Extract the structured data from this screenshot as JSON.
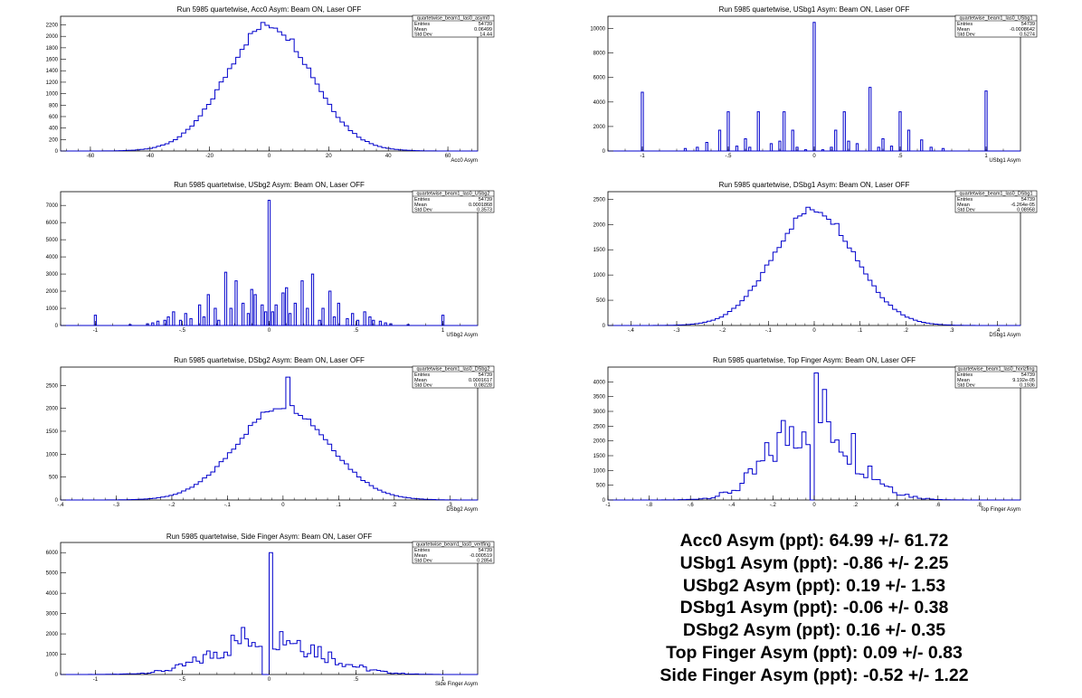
{
  "chart_data": [
    {
      "type": "histogram",
      "title": "Run 5985 quartetwise, Acc0 Asym: Beam ON, Laser OFF",
      "xlabel": "Acc0 Asym",
      "xlim": [
        -70,
        70
      ],
      "ylim": [
        0,
        2350
      ],
      "xticks": [
        -60,
        -40,
        -20,
        0,
        20,
        40,
        60
      ],
      "yticks": [
        0,
        200,
        400,
        600,
        800,
        1000,
        1200,
        1400,
        1600,
        1800,
        2000,
        2200
      ],
      "stats": {
        "name": "quartetwise_beam1_las0_asym0",
        "Entries": "54739",
        "Mean": "0.06499",
        "Std Dev": "14.44"
      },
      "shape": {
        "kind": "gauss",
        "mean": 0,
        "sigma": 14.4,
        "peak": 2200,
        "bins": 100,
        "lo": -70,
        "hi": 70
      }
    },
    {
      "type": "histogram",
      "title": "Run 5985 quartetwise, USbg1 Asym: Beam ON, Laser OFF",
      "xlabel": "USbg1 Asym",
      "xlim": [
        -1.2,
        1.2
      ],
      "ylim": [
        0,
        11000
      ],
      "xticks": [
        -1,
        -0.5,
        0,
        0.5,
        1
      ],
      "yticks": [
        0,
        2000,
        4000,
        6000,
        8000,
        10000
      ],
      "stats": {
        "name": "quartetwise_beam1_las0_USbg1",
        "Entries": "54739",
        "Mean": "-0.0008642",
        "Std Dev": "0.5274"
      },
      "spikes": [
        [
          -1.0,
          4800
        ],
        [
          -0.75,
          200
        ],
        [
          -0.68,
          300
        ],
        [
          -0.625,
          700
        ],
        [
          -0.55,
          1700
        ],
        [
          -0.5,
          3200
        ],
        [
          -0.45,
          400
        ],
        [
          -0.4,
          1000
        ],
        [
          -0.375,
          300
        ],
        [
          -0.325,
          3200
        ],
        [
          -0.25,
          600
        ],
        [
          -0.2,
          800
        ],
        [
          -0.175,
          3200
        ],
        [
          -0.125,
          1700
        ],
        [
          -0.1,
          300
        ],
        [
          -0.05,
          100
        ],
        [
          0.0,
          10500
        ],
        [
          0.05,
          100
        ],
        [
          0.1,
          300
        ],
        [
          0.125,
          1700
        ],
        [
          0.175,
          3200
        ],
        [
          0.2,
          800
        ],
        [
          0.25,
          600
        ],
        [
          0.325,
          5200
        ],
        [
          0.375,
          300
        ],
        [
          0.4,
          1000
        ],
        [
          0.45,
          400
        ],
        [
          0.5,
          3200
        ],
        [
          0.55,
          1700
        ],
        [
          0.625,
          900
        ],
        [
          0.68,
          300
        ],
        [
          0.75,
          200
        ],
        [
          1.0,
          4900
        ]
      ]
    },
    {
      "type": "histogram",
      "title": "Run 5985 quartetwise, USbg2 Asym: Beam ON, Laser OFF",
      "xlabel": "USbg2 Asym",
      "xlim": [
        -1.2,
        1.2
      ],
      "ylim": [
        0,
        7800
      ],
      "xticks": [
        -1,
        -0.5,
        0,
        0.5,
        1
      ],
      "yticks": [
        0,
        1000,
        2000,
        3000,
        4000,
        5000,
        6000,
        7000
      ],
      "stats": {
        "name": "quartetwise_beam1_las0_USbg2",
        "Entries": "54739",
        "Mean": "0.0001868",
        "Std Dev": "0.3573"
      },
      "spikes": [
        [
          -1.0,
          600
        ],
        [
          -0.8,
          50
        ],
        [
          -0.7,
          100
        ],
        [
          -0.67,
          150
        ],
        [
          -0.64,
          250
        ],
        [
          -0.6,
          300
        ],
        [
          -0.58,
          500
        ],
        [
          -0.55,
          800
        ],
        [
          -0.51,
          300
        ],
        [
          -0.48,
          700
        ],
        [
          -0.45,
          400
        ],
        [
          -0.4,
          1200
        ],
        [
          -0.375,
          500
        ],
        [
          -0.35,
          1800
        ],
        [
          -0.31,
          1000
        ],
        [
          -0.29,
          300
        ],
        [
          -0.25,
          3100
        ],
        [
          -0.22,
          1000
        ],
        [
          -0.19,
          2600
        ],
        [
          -0.15,
          1300
        ],
        [
          -0.12,
          700
        ],
        [
          -0.1,
          2100
        ],
        [
          -0.08,
          1800
        ],
        [
          -0.04,
          1200
        ],
        [
          -0.02,
          800
        ],
        [
          0.0,
          7300
        ],
        [
          0.02,
          800
        ],
        [
          0.04,
          1200
        ],
        [
          0.08,
          1900
        ],
        [
          0.1,
          2200
        ],
        [
          0.12,
          700
        ],
        [
          0.15,
          1300
        ],
        [
          0.19,
          2600
        ],
        [
          0.22,
          1000
        ],
        [
          0.25,
          3000
        ],
        [
          0.29,
          300
        ],
        [
          0.31,
          1000
        ],
        [
          0.35,
          2000
        ],
        [
          0.375,
          500
        ],
        [
          0.4,
          1300
        ],
        [
          0.45,
          400
        ],
        [
          0.48,
          700
        ],
        [
          0.51,
          300
        ],
        [
          0.55,
          800
        ],
        [
          0.58,
          500
        ],
        [
          0.6,
          300
        ],
        [
          0.64,
          250
        ],
        [
          0.67,
          150
        ],
        [
          0.7,
          100
        ],
        [
          0.8,
          50
        ],
        [
          1.0,
          600
        ]
      ]
    },
    {
      "type": "histogram",
      "title": "Run 5985 quartetwise, DSbg1 Asym: Beam ON, Laser OFF",
      "xlabel": "DSbg1 Asym",
      "xlim": [
        -0.45,
        0.45
      ],
      "ylim": [
        0,
        2650
      ],
      "xticks": [
        -0.4,
        -0.3,
        -0.2,
        -0.1,
        0,
        0.1,
        0.2,
        0.3,
        0.4
      ],
      "yticks": [
        0,
        500,
        1000,
        1500,
        2000,
        2500
      ],
      "stats": {
        "name": "quartetwise_beam1_las0_DSbg1",
        "Entries": "54739",
        "Mean": "-6.264e-05",
        "Std Dev": "0.08958"
      },
      "shape": {
        "kind": "gauss",
        "mean": 0,
        "sigma": 0.089,
        "peak": 2300,
        "bins": 100,
        "lo": -0.45,
        "hi": 0.45
      }
    },
    {
      "type": "histogram",
      "title": "Run 5985 quartetwise, DSbg2 Asym: Beam ON, Laser OFF",
      "xlabel": "DSbg2 Asym",
      "xlim": [
        -0.4,
        0.35
      ],
      "ylim": [
        0,
        2900
      ],
      "xticks": [
        -0.4,
        -0.3,
        -0.2,
        -0.1,
        0,
        0.1,
        0.2,
        0.3
      ],
      "yticks": [
        0,
        500,
        1000,
        1500,
        2000,
        2500
      ],
      "stats": {
        "name": "quartetwise_beam1_las0_DSbg2",
        "Entries": "54739",
        "Mean": "0.0001617",
        "Std Dev": "0.08228"
      },
      "shape": {
        "kind": "gauss",
        "mean": 0,
        "sigma": 0.082,
        "peak": 2050,
        "bins": 100,
        "lo": -0.4,
        "hi": 0.35,
        "spike": [
          0.008,
          2680
        ]
      }
    },
    {
      "type": "histogram",
      "title": "Run 5985 quartetwise, Top Finger Asym: Beam ON, Laser OFF",
      "xlabel": "Top Finger Asym",
      "xlim": [
        -1,
        1
      ],
      "ylim": [
        0,
        4500
      ],
      "xticks": [
        -1,
        -0.8,
        -0.6,
        -0.4,
        -0.2,
        0,
        0.2,
        0.4,
        0.6,
        0.8
      ],
      "yticks": [
        0,
        500,
        1000,
        1500,
        2000,
        2500,
        3000,
        3500,
        4000
      ],
      "stats": {
        "name": "quartetwise_beam1_las0_horizfing",
        "Entries": "54739",
        "Mean": "9.192e-05",
        "Std Dev": "0.1936"
      },
      "shape": {
        "kind": "comb",
        "mean": 0,
        "sigma": 0.19,
        "peak": 2900,
        "bins": 100,
        "lo": -1,
        "hi": 1,
        "spike": [
          0.008,
          4300
        ],
        "zero": [
          -0.012,
          0
        ]
      }
    },
    {
      "type": "histogram",
      "title": "Run 5985 quartetwise, Side Finger Asym: Beam ON, Laser OFF",
      "xlabel": "Side Finger Asym",
      "xlim": [
        -1.2,
        1.2
      ],
      "ylim": [
        0,
        6500
      ],
      "xticks": [
        -1,
        -0.5,
        0,
        0.5,
        1
      ],
      "yticks": [
        0,
        1000,
        2000,
        3000,
        4000,
        5000,
        6000
      ],
      "stats": {
        "name": "quartetwise_beam1_las0_vertfing",
        "Entries": "54739",
        "Mean": "-0.000519",
        "Std Dev": "0.2854"
      },
      "shape": {
        "kind": "comb",
        "mean": 0,
        "sigma": 0.28,
        "peak": 2000,
        "bins": 120,
        "lo": -1.2,
        "hi": 1.2,
        "spike": [
          0.0,
          6000
        ],
        "zero": [
          -0.02,
          0
        ]
      }
    }
  ],
  "summary": [
    "Acc0 Asym (ppt): 64.99 +/- 61.72",
    "USbg1 Asym (ppt): -0.86 +/- 2.25",
    "USbg2 Asym (ppt): 0.19 +/- 1.53",
    "DSbg1 Asym (ppt): -0.06 +/- 0.38",
    "DSbg2 Asym (ppt): 0.16 +/- 0.35",
    "Top Finger Asym (ppt): 0.09 +/- 0.83",
    "Side Finger Asym (ppt): -0.52 +/- 1.22"
  ],
  "colors": {
    "line": "#0000cc",
    "axis": "#000000"
  }
}
